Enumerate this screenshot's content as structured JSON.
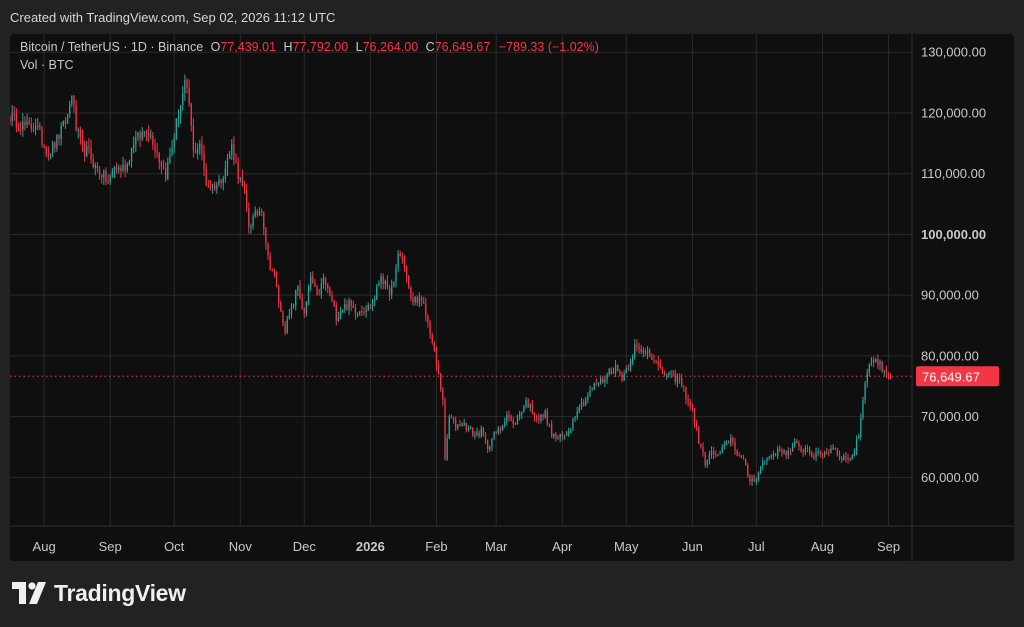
{
  "header": {
    "created_text": "Created with TradingView.com, Sep 02, 2026 11:12 UTC"
  },
  "legend": {
    "symbol": "Bitcoin / TetherUS · 1D · Binance",
    "o_label": "O",
    "o_value": "77,439.01",
    "h_label": "H",
    "h_value": "77,792.00",
    "l_label": "L",
    "l_value": "76,264.00",
    "c_label": "C",
    "c_value": "76,649.67",
    "change": "−789.33 (−1.02%)",
    "volume_label": "Vol · BTC"
  },
  "footer": {
    "brand": "TradingView"
  },
  "colors": {
    "up": "#26a69a",
    "down": "#f23645",
    "grid": "#2a2a2a",
    "text": "#c9c9c9",
    "background": "#0f0f0f"
  },
  "chart_data": {
    "type": "candlestick",
    "ylim": [
      52000,
      133000
    ],
    "y_ticks": [
      60000,
      70000,
      80000,
      90000,
      100000,
      110000,
      120000,
      130000
    ],
    "y_tick_labels": [
      "60,000.00",
      "70,000.00",
      "80,000.00",
      "90,000.00",
      "100,000.00",
      "110,000.00",
      "120,000.00",
      "130,000.00"
    ],
    "x_ticks": [
      {
        "date": "2025-08-01",
        "label": "Aug"
      },
      {
        "date": "2025-09-01",
        "label": "Sep"
      },
      {
        "date": "2025-10-01",
        "label": "Oct"
      },
      {
        "date": "2025-11-01",
        "label": "Nov"
      },
      {
        "date": "2025-12-01",
        "label": "Dec"
      },
      {
        "date": "2026-01-01",
        "label": "2026"
      },
      {
        "date": "2026-02-01",
        "label": "Feb"
      },
      {
        "date": "2026-03-01",
        "label": "Mar"
      },
      {
        "date": "2026-04-01",
        "label": "Apr"
      },
      {
        "date": "2026-05-01",
        "label": "May"
      },
      {
        "date": "2026-06-01",
        "label": "Jun"
      },
      {
        "date": "2026-07-01",
        "label": "Jul"
      },
      {
        "date": "2026-08-01",
        "label": "Aug"
      },
      {
        "date": "2026-09-01",
        "label": "Sep"
      }
    ],
    "x_range": [
      "2025-07-16",
      "2026-09-12"
    ],
    "last_price": 76649.67,
    "last_price_label": "76,649.67",
    "closes": [
      [
        "2025-07-16",
        119500
      ],
      [
        "2025-07-19",
        118500
      ],
      [
        "2025-07-22",
        118000
      ],
      [
        "2025-07-25",
        117500
      ],
      [
        "2025-07-28",
        118300
      ],
      [
        "2025-07-31",
        115500
      ],
      [
        "2025-08-03",
        113500
      ],
      [
        "2025-08-06",
        114800
      ],
      [
        "2025-08-09",
        117000
      ],
      [
        "2025-08-12",
        119500
      ],
      [
        "2025-08-14",
        123500
      ],
      [
        "2025-08-16",
        117500
      ],
      [
        "2025-08-19",
        114000
      ],
      [
        "2025-08-22",
        113500
      ],
      [
        "2025-08-25",
        111000
      ],
      [
        "2025-08-28",
        110000
      ],
      [
        "2025-08-31",
        108500
      ],
      [
        "2025-09-03",
        111000
      ],
      [
        "2025-09-06",
        110800
      ],
      [
        "2025-09-09",
        111500
      ],
      [
        "2025-09-12",
        115500
      ],
      [
        "2025-09-15",
        116000
      ],
      [
        "2025-09-18",
        117500
      ],
      [
        "2025-09-21",
        115500
      ],
      [
        "2025-09-24",
        112500
      ],
      [
        "2025-09-27",
        110000
      ],
      [
        "2025-09-30",
        114500
      ],
      [
        "2025-10-03",
        120000
      ],
      [
        "2025-10-06",
        124500
      ],
      [
        "2025-10-08",
        121500
      ],
      [
        "2025-10-10",
        113500
      ],
      [
        "2025-10-13",
        115000
      ],
      [
        "2025-10-16",
        108500
      ],
      [
        "2025-10-19",
        108000
      ],
      [
        "2025-10-22",
        108500
      ],
      [
        "2025-10-25",
        111000
      ],
      [
        "2025-10-28",
        114500
      ],
      [
        "2025-10-31",
        110000
      ],
      [
        "2025-11-03",
        106500
      ],
      [
        "2025-11-05",
        101500
      ],
      [
        "2025-11-08",
        103000
      ],
      [
        "2025-11-11",
        104500
      ],
      [
        "2025-11-14",
        96000
      ],
      [
        "2025-11-17",
        93000
      ],
      [
        "2025-11-20",
        87000
      ],
      [
        "2025-11-22",
        84500
      ],
      [
        "2025-11-25",
        87500
      ],
      [
        "2025-11-28",
        91500
      ],
      [
        "2025-12-01",
        86500
      ],
      [
        "2025-12-04",
        93000
      ],
      [
        "2025-12-07",
        89500
      ],
      [
        "2025-12-10",
        92500
      ],
      [
        "2025-12-13",
        90000
      ],
      [
        "2025-12-16",
        86500
      ],
      [
        "2025-12-19",
        88000
      ],
      [
        "2025-12-22",
        88500
      ],
      [
        "2025-12-25",
        87500
      ],
      [
        "2025-12-28",
        87800
      ],
      [
        "2025-12-31",
        88000
      ],
      [
        "2026-01-03",
        89500
      ],
      [
        "2026-01-06",
        93500
      ],
      [
        "2026-01-09",
        90500
      ],
      [
        "2026-01-12",
        91500
      ],
      [
        "2026-01-14",
        97000
      ],
      [
        "2026-01-17",
        95000
      ],
      [
        "2026-01-20",
        89000
      ],
      [
        "2026-01-23",
        89500
      ],
      [
        "2026-01-26",
        88000
      ],
      [
        "2026-01-29",
        84000
      ],
      [
        "2026-02-01",
        78500
      ],
      [
        "2026-02-04",
        73000
      ],
      [
        "2026-02-05",
        62500
      ],
      [
        "2026-02-07",
        70000
      ],
      [
        "2026-02-10",
        68500
      ],
      [
        "2026-02-13",
        69000
      ],
      [
        "2026-02-16",
        68000
      ],
      [
        "2026-02-19",
        67000
      ],
      [
        "2026-02-22",
        67500
      ],
      [
        "2026-02-25",
        65000
      ],
      [
        "2026-02-28",
        67000
      ],
      [
        "2026-03-03",
        68000
      ],
      [
        "2026-03-06",
        70500
      ],
      [
        "2026-03-09",
        68500
      ],
      [
        "2026-03-12",
        70500
      ],
      [
        "2026-03-15",
        72500
      ],
      [
        "2026-03-18",
        71000
      ],
      [
        "2026-03-21",
        69500
      ],
      [
        "2026-03-24",
        70500
      ],
      [
        "2026-03-27",
        67000
      ],
      [
        "2026-03-30",
        66500
      ],
      [
        "2026-04-02",
        66800
      ],
      [
        "2026-04-05",
        68500
      ],
      [
        "2026-04-08",
        71500
      ],
      [
        "2026-04-11",
        72500
      ],
      [
        "2026-04-14",
        74000
      ],
      [
        "2026-04-17",
        75500
      ],
      [
        "2026-04-20",
        76000
      ],
      [
        "2026-04-23",
        77500
      ],
      [
        "2026-04-26",
        78000
      ],
      [
        "2026-04-29",
        76500
      ],
      [
        "2026-05-02",
        78500
      ],
      [
        "2026-05-05",
        81500
      ],
      [
        "2026-05-08",
        80500
      ],
      [
        "2026-05-11",
        81000
      ],
      [
        "2026-05-14",
        79500
      ],
      [
        "2026-05-17",
        77500
      ],
      [
        "2026-05-20",
        77000
      ],
      [
        "2026-05-23",
        76500
      ],
      [
        "2026-05-26",
        76000
      ],
      [
        "2026-05-29",
        73500
      ],
      [
        "2026-06-01",
        71000
      ],
      [
        "2026-06-04",
        66000
      ],
      [
        "2026-06-07",
        62500
      ],
      [
        "2026-06-10",
        64000
      ],
      [
        "2026-06-13",
        63500
      ],
      [
        "2026-06-16",
        65000
      ],
      [
        "2026-06-19",
        66500
      ],
      [
        "2026-06-22",
        64000
      ],
      [
        "2026-06-25",
        62500
      ],
      [
        "2026-06-28",
        59500
      ],
      [
        "2026-07-01",
        60000
      ],
      [
        "2026-07-04",
        62500
      ],
      [
        "2026-07-07",
        63500
      ],
      [
        "2026-07-10",
        64000
      ],
      [
        "2026-07-13",
        64500
      ],
      [
        "2026-07-16",
        64000
      ],
      [
        "2026-07-19",
        65500
      ],
      [
        "2026-07-22",
        64500
      ],
      [
        "2026-07-25",
        64800
      ],
      [
        "2026-07-28",
        63500
      ],
      [
        "2026-07-31",
        64000
      ],
      [
        "2026-08-03",
        64200
      ],
      [
        "2026-08-06",
        65000
      ],
      [
        "2026-08-09",
        63500
      ],
      [
        "2026-08-12",
        63000
      ],
      [
        "2026-08-15",
        63500
      ],
      [
        "2026-08-18",
        67000
      ],
      [
        "2026-08-20",
        73000
      ],
      [
        "2026-08-22",
        78000
      ],
      [
        "2026-08-25",
        79500
      ],
      [
        "2026-08-28",
        78500
      ],
      [
        "2026-08-31",
        77439.01
      ],
      [
        "2026-09-02",
        76649.67
      ]
    ]
  }
}
